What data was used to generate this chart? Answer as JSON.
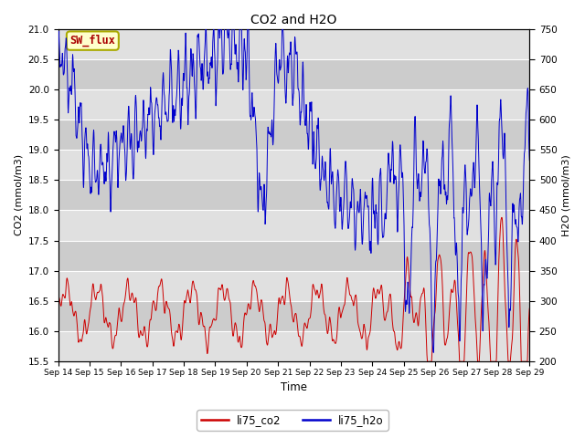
{
  "title": "CO2 and H2O",
  "xlabel": "Time",
  "ylabel_left": "CO2 (mmol/m3)",
  "ylabel_right": "H2O (mmol/m3)",
  "ylim_left": [
    15.5,
    21.0
  ],
  "ylim_right": [
    200,
    750
  ],
  "yticks_left": [
    15.5,
    16.0,
    16.5,
    17.0,
    17.5,
    18.0,
    18.5,
    19.0,
    19.5,
    20.0,
    20.5,
    21.0
  ],
  "yticks_right": [
    200,
    250,
    300,
    350,
    400,
    450,
    500,
    550,
    600,
    650,
    700,
    750
  ],
  "xtick_labels": [
    "Sep 14",
    "Sep 15",
    "Sep 16",
    "Sep 17",
    "Sep 18",
    "Sep 19",
    "Sep 20",
    "Sep 21",
    "Sep 22",
    "Sep 23",
    "Sep 24",
    "Sep 25",
    "Sep 26",
    "Sep 27",
    "Sep 28",
    "Sep 29"
  ],
  "color_co2": "#cc0000",
  "color_h2o": "#0000cc",
  "legend_label_co2": "li75_co2",
  "legend_label_h2o": "li75_h2o",
  "annotation_text": "SW_flux",
  "annotation_color": "#aa0000",
  "annotation_bg": "#ffffcc",
  "annotation_border": "#aaaa00",
  "band_colors": [
    "#e0e0e0",
    "#cccccc"
  ],
  "n_points": 2000
}
